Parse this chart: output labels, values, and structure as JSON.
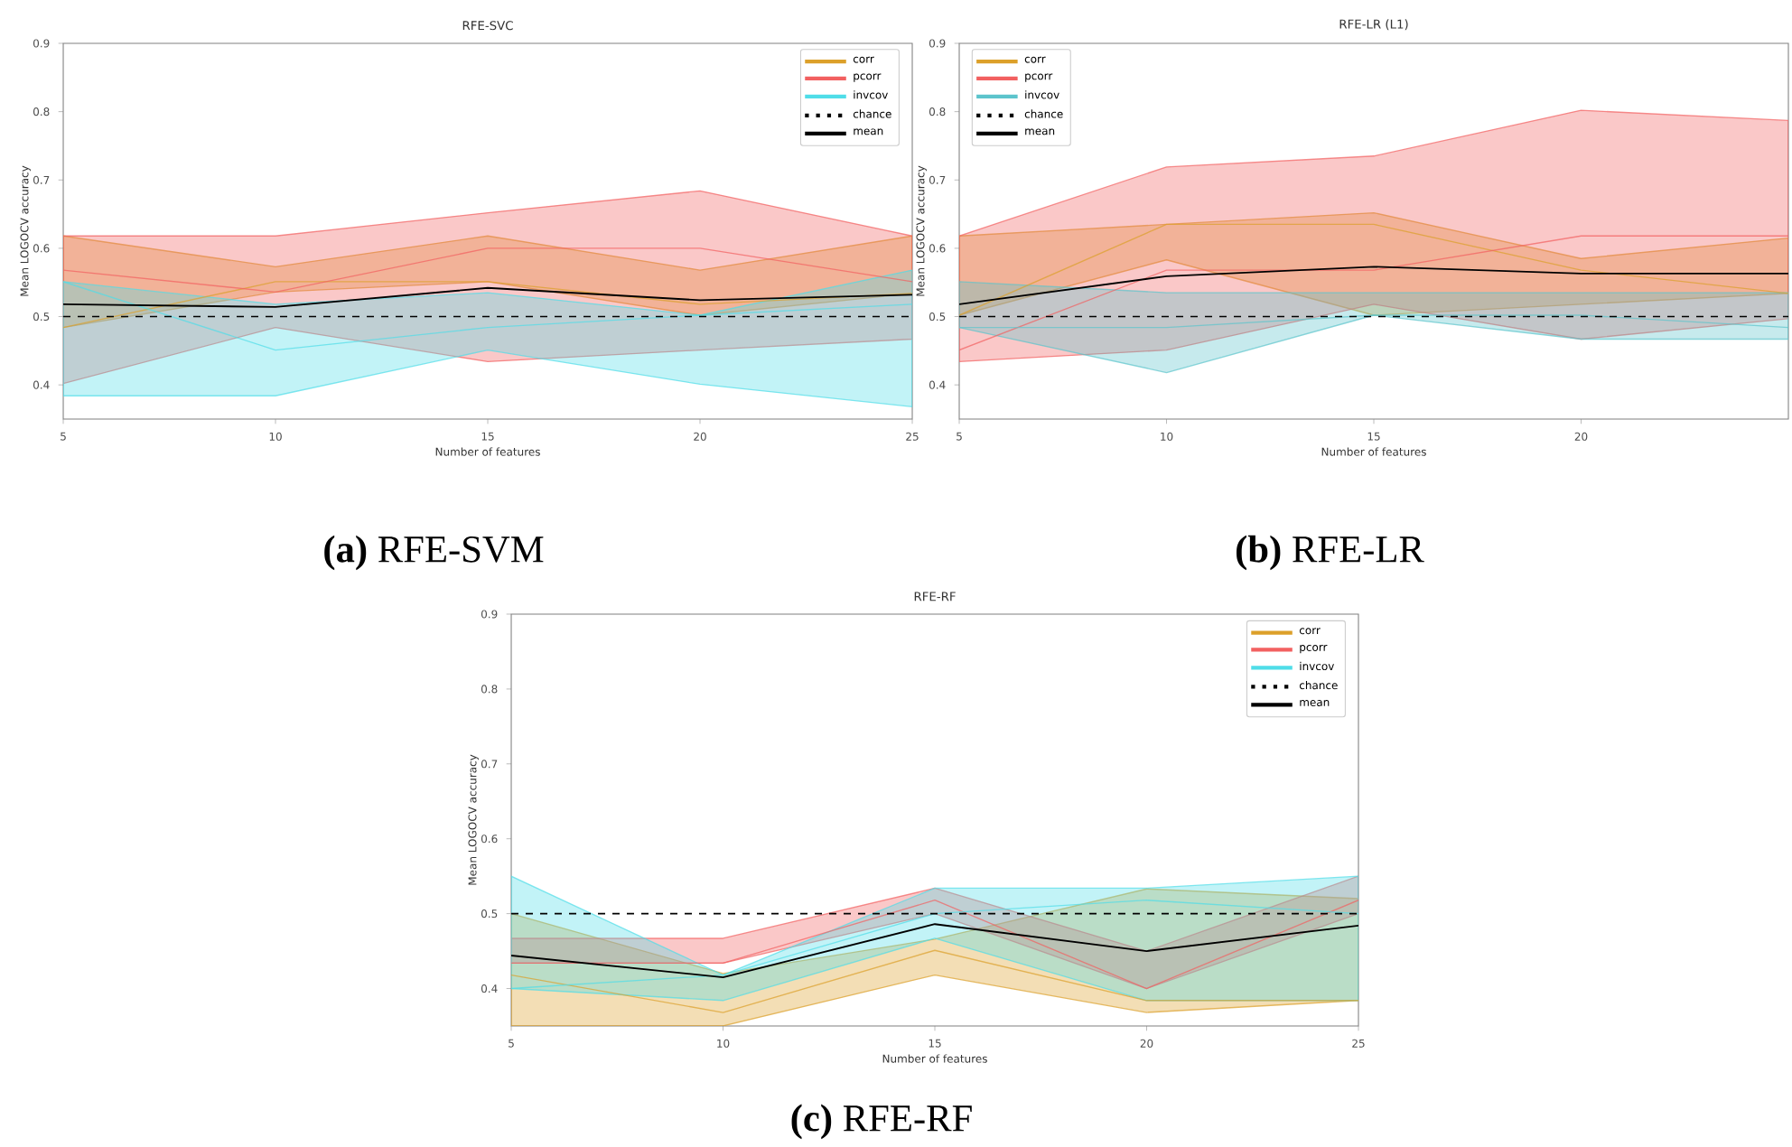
{
  "chart_data": [
    {
      "type": "line",
      "title": "RFE-SVC",
      "xlabel": "Number of features",
      "ylabel": "Mean LOGOCV accuracy",
      "x": [
        5,
        10,
        15,
        20,
        25
      ],
      "xlim": [
        5,
        25
      ],
      "xticks": [
        5,
        10,
        15,
        20,
        25
      ],
      "ylim": [
        0.35,
        0.9
      ],
      "yticks": [
        0.4,
        0.5,
        0.6,
        0.7,
        0.8,
        0.9
      ],
      "legend": "top right",
      "series": [
        {
          "name": "corr",
          "color": "#dca02a",
          "values": [
            0.484,
            0.551,
            0.551,
            0.518,
            0.534
          ],
          "lower": [
            0.484,
            0.536,
            0.551,
            0.502,
            0.534
          ],
          "upper": [
            0.618,
            0.573,
            0.618,
            0.568,
            0.618
          ]
        },
        {
          "name": "pcorr",
          "color": "#f26060",
          "values": [
            0.568,
            0.536,
            0.6,
            0.6,
            0.551
          ],
          "lower": [
            0.402,
            0.484,
            0.434,
            0.451,
            0.467
          ],
          "upper": [
            0.618,
            0.618,
            0.652,
            0.684,
            0.618
          ]
        },
        {
          "name": "invcov",
          "color": "#4fdde8",
          "values": [
            0.551,
            0.451,
            0.484,
            0.502,
            0.518
          ],
          "lower": [
            0.384,
            0.384,
            0.451,
            0.401,
            0.368
          ],
          "upper": [
            0.551,
            0.518,
            0.535,
            0.502,
            0.568
          ]
        },
        {
          "name": "mean",
          "color": "#000000",
          "values": [
            0.518,
            0.514,
            0.542,
            0.524,
            0.532
          ]
        }
      ],
      "ref_lines": [
        {
          "axis": "y",
          "value": 0.5,
          "label": "chance",
          "color": "#000000",
          "line_style": "dashed"
        }
      ],
      "annotations": [
        "**(a)** RFE-SVM"
      ]
    },
    {
      "type": "line",
      "title": "RFE-LR (L1)",
      "xlabel": "Number of features",
      "ylabel": "Mean LOGOCV accuracy",
      "x": [
        5,
        10,
        15,
        20,
        25
      ],
      "xlim": [
        5,
        25
      ],
      "xticks": [
        5,
        10,
        15,
        20
      ],
      "ylim": [
        0.35,
        0.9
      ],
      "yticks": [
        0.4,
        0.5,
        0.6,
        0.7,
        0.8,
        0.9
      ],
      "legend": "top left",
      "series": [
        {
          "name": "corr",
          "color": "#dca02a",
          "values": [
            0.502,
            0.635,
            0.635,
            0.568,
            0.534
          ],
          "lower": [
            0.502,
            0.583,
            0.502,
            0.518,
            0.534
          ],
          "upper": [
            0.618,
            0.635,
            0.652,
            0.585,
            0.615
          ]
        },
        {
          "name": "pcorr",
          "color": "#f26060",
          "values": [
            0.451,
            0.568,
            0.568,
            0.618,
            0.618
          ],
          "lower": [
            0.434,
            0.451,
            0.518,
            0.467,
            0.497
          ],
          "upper": [
            0.618,
            0.719,
            0.735,
            0.802,
            0.787
          ]
        },
        {
          "name": "invcov",
          "color": "#5cc4cc",
          "values": [
            0.484,
            0.484,
            0.502,
            0.502,
            0.484
          ],
          "lower": [
            0.484,
            0.418,
            0.502,
            0.467,
            0.467
          ],
          "upper": [
            0.551,
            0.535,
            0.535,
            0.535,
            0.535
          ]
        },
        {
          "name": "mean",
          "color": "#000000",
          "values": [
            0.518,
            0.559,
            0.573,
            0.563,
            0.563
          ]
        }
      ],
      "ref_lines": [
        {
          "axis": "y",
          "value": 0.5,
          "label": "chance",
          "color": "#000000",
          "line_style": "dashed"
        }
      ],
      "annotations": [
        "**(b)** RFE-LR"
      ]
    },
    {
      "type": "line",
      "title": "RFE-RF",
      "xlabel": "Number of features",
      "ylabel": "Mean LOGOCV accuracy",
      "x": [
        5,
        10,
        15,
        20,
        25
      ],
      "xlim": [
        5,
        25
      ],
      "xticks": [
        5,
        10,
        15,
        20,
        25
      ],
      "ylim": [
        0.35,
        0.9
      ],
      "yticks": [
        0.4,
        0.5,
        0.6,
        0.7,
        0.8,
        0.9
      ],
      "legend": "top right",
      "series": [
        {
          "name": "corr",
          "color": "#dca02a",
          "values": [
            0.418,
            0.368,
            0.451,
            0.384,
            0.384
          ],
          "lower": [
            0.35,
            0.35,
            0.418,
            0.368,
            0.384
          ],
          "upper": [
            0.5,
            0.42,
            0.466,
            0.533,
            0.52
          ]
        },
        {
          "name": "pcorr",
          "color": "#f26060",
          "values": [
            0.434,
            0.434,
            0.518,
            0.4,
            0.518
          ],
          "lower": [
            0.434,
            0.434,
            0.5,
            0.4,
            0.5
          ],
          "upper": [
            0.467,
            0.467,
            0.534,
            0.45,
            0.55
          ]
        },
        {
          "name": "invcov",
          "color": "#4fdde8",
          "values": [
            0.4,
            0.418,
            0.5,
            0.518,
            0.5
          ],
          "lower": [
            0.4,
            0.384,
            0.467,
            0.384,
            0.384
          ],
          "upper": [
            0.55,
            0.418,
            0.534,
            0.534,
            0.55
          ]
        },
        {
          "name": "mean",
          "color": "#000000",
          "values": [
            0.444,
            0.415,
            0.486,
            0.45,
            0.484
          ]
        }
      ],
      "ref_lines": [
        {
          "axis": "y",
          "value": 0.5,
          "label": "chance",
          "color": "#000000",
          "line_style": "dashed"
        }
      ],
      "annotations": [
        "**(c)** RFE-RF"
      ]
    }
  ]
}
